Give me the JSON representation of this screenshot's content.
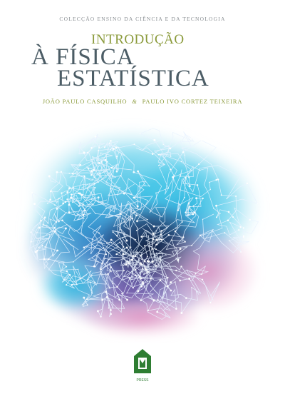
{
  "cover": {
    "series": "COLECÇÃO ENSINO DA CIÊNCIA E DA TECNOLOGIA",
    "title_line1": "INTRODUÇÃO",
    "title_line2": "À FÍSICA",
    "title_line3": "ESTATÍSTICA",
    "author1": "JOÃO PAULO CASQUILHO",
    "author_separator": "&",
    "author2": "PAULO IVO CORTEZ TEIXEIRA",
    "publisher_mark": "PRESS"
  },
  "colors": {
    "title_green": "#8a9a3a",
    "title_slate": "#4c5d66",
    "cloud_cyan": "#2fb7e0",
    "cloud_blue": "#3a7fc8",
    "cloud_purple": "#8a5fb0",
    "cloud_pink": "#e59ac5",
    "cloud_dark": "#1a2f55",
    "logo_green": "#2e7d32"
  },
  "icons": {
    "artwork": "random-walk-network-icon",
    "publisher_logo": "press-logo-icon"
  }
}
